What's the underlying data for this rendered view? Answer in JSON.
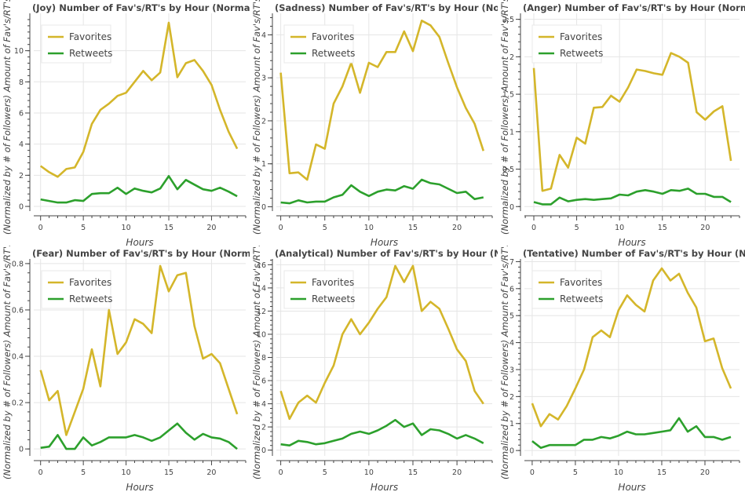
{
  "chart_data": [
    {
      "type": "line",
      "title": "(Joy) Number of Fav's/RT's by Hour (Normalized by # of Followers)",
      "xlabel": "Hours",
      "ylabel": "(Normalized by # of Followers) Amount of Fav's/RT's",
      "xlim": [
        -0.8,
        24
      ],
      "ylim": [
        -0.3,
        12.4
      ],
      "xticks": [
        0,
        5,
        10,
        15,
        20
      ],
      "yticks": [
        0,
        2,
        4,
        6,
        8,
        10
      ],
      "ytick_labels": [
        "0",
        "2",
        "4",
        "6",
        "8",
        "10"
      ],
      "grid": true,
      "legend": "top-left",
      "x": [
        0,
        1,
        2,
        3,
        4,
        5,
        6,
        7,
        8,
        9,
        10,
        11,
        12,
        13,
        14,
        15,
        16,
        17,
        18,
        19,
        20,
        21,
        22,
        23
      ],
      "series": [
        {
          "name": "Favorites",
          "color": "#d4b62a",
          "values": [
            2.6,
            2.2,
            1.9,
            2.4,
            2.5,
            3.5,
            5.3,
            6.2,
            6.6,
            7.1,
            7.3,
            8.0,
            8.7,
            8.1,
            8.6,
            11.8,
            8.3,
            9.2,
            9.4,
            8.7,
            7.8,
            6.2,
            4.8,
            3.7
          ]
        },
        {
          "name": "Retweets",
          "color": "#2ca02c",
          "values": [
            0.45,
            0.35,
            0.25,
            0.25,
            0.4,
            0.35,
            0.8,
            0.85,
            0.85,
            1.2,
            0.8,
            1.15,
            1.0,
            0.9,
            1.15,
            1.95,
            1.1,
            1.7,
            1.4,
            1.1,
            1.0,
            1.2,
            0.95,
            0.65
          ]
        }
      ]
    },
    {
      "type": "line",
      "title": "(Sadness) Number of Fav's/RT's by Hour (Normalized by # of Followers)",
      "xlabel": "Hours",
      "ylabel": "(Normalized by # of Followers) Amount of Fav's/RT's",
      "xlim": [
        -0.5,
        24
      ],
      "ylim": [
        -0.1,
        4.5
      ],
      "xticks": [
        0,
        5,
        10,
        15,
        20
      ],
      "yticks": [
        0,
        1,
        2,
        3,
        4
      ],
      "ytick_labels": [
        "0",
        "1",
        "2",
        "3",
        "4"
      ],
      "grid": true,
      "legend": "top-left",
      "x": [
        0,
        1,
        2,
        3,
        4,
        5,
        6,
        7,
        8,
        9,
        10,
        11,
        12,
        13,
        14,
        15,
        16,
        17,
        18,
        19,
        20,
        21,
        22,
        23
      ],
      "series": [
        {
          "name": "Favorites",
          "color": "#d4b62a",
          "values": [
            3.12,
            0.78,
            0.8,
            0.63,
            1.45,
            1.35,
            2.4,
            2.8,
            3.35,
            2.65,
            3.35,
            3.25,
            3.6,
            3.6,
            4.08,
            3.62,
            4.33,
            4.22,
            3.95,
            3.35,
            2.78,
            2.3,
            1.93,
            1.3
          ]
        },
        {
          "name": "Retweets",
          "color": "#2ca02c",
          "values": [
            0.1,
            0.08,
            0.15,
            0.1,
            0.12,
            0.12,
            0.22,
            0.28,
            0.5,
            0.35,
            0.25,
            0.35,
            0.4,
            0.38,
            0.48,
            0.42,
            0.63,
            0.55,
            0.52,
            0.42,
            0.32,
            0.35,
            0.18,
            0.22
          ]
        }
      ]
    },
    {
      "type": "line",
      "title": "(Anger) Number of Fav's/RT's by Hour (Normalized by # of Followers)",
      "xlabel": "Hours",
      "ylabel": "(Normalized by # of Followers) Amount of Fav's/RT's",
      "xlim": [
        -1.1,
        24
      ],
      "ylim": [
        -0.06,
        2.58
      ],
      "xticks": [
        0,
        5,
        10,
        15,
        20
      ],
      "yticks": [
        0,
        0.5,
        1,
        1.5,
        2,
        2.5
      ],
      "ytick_labels": [
        "0",
        "0.5",
        "1",
        "1.5",
        "2",
        "2.5"
      ],
      "grid": true,
      "legend": "top-left",
      "x": [
        0,
        1,
        2,
        3,
        4,
        5,
        6,
        7,
        8,
        9,
        10,
        11,
        12,
        13,
        14,
        15,
        16,
        17,
        18,
        19,
        20,
        21,
        22,
        23
      ],
      "series": [
        {
          "name": "Favorites",
          "color": "#d4b62a",
          "values": [
            1.85,
            0.21,
            0.24,
            0.69,
            0.52,
            0.92,
            0.84,
            1.32,
            1.33,
            1.48,
            1.4,
            1.59,
            1.83,
            1.81,
            1.78,
            1.76,
            2.05,
            2.0,
            1.92,
            1.26,
            1.16,
            1.27,
            1.34,
            0.61
          ]
        },
        {
          "name": "Retweets",
          "color": "#2ca02c",
          "values": [
            0.06,
            0.03,
            0.03,
            0.12,
            0.07,
            0.09,
            0.1,
            0.09,
            0.1,
            0.11,
            0.16,
            0.15,
            0.2,
            0.22,
            0.2,
            0.17,
            0.22,
            0.21,
            0.24,
            0.17,
            0.17,
            0.13,
            0.13,
            0.06
          ]
        }
      ]
    },
    {
      "type": "line",
      "title": "(Fear) Number of Fav's/RT's by Hour (Normalized by # of Followers)",
      "xlabel": "Hours",
      "ylabel": "(Normalized by # of Followers) Amount of Fav's/RT's",
      "xlim": [
        -0.8,
        24
      ],
      "ylim": [
        -0.03,
        0.82
      ],
      "xticks": [
        0,
        5,
        10,
        15,
        20
      ],
      "yticks": [
        0,
        0.2,
        0.4,
        0.6,
        0.8
      ],
      "ytick_labels": [
        "0",
        "0.2",
        "0.4",
        "0.6",
        "0.8"
      ],
      "grid": true,
      "legend": "top-left",
      "x": [
        0,
        1,
        2,
        3,
        4,
        5,
        6,
        7,
        8,
        9,
        10,
        11,
        12,
        13,
        14,
        15,
        16,
        17,
        18,
        19,
        20,
        21,
        22,
        23
      ],
      "series": [
        {
          "name": "Favorites",
          "color": "#d4b62a",
          "values": [
            0.34,
            0.21,
            0.25,
            0.06,
            0.16,
            0.26,
            0.43,
            0.27,
            0.6,
            0.41,
            0.46,
            0.56,
            0.54,
            0.5,
            0.79,
            0.68,
            0.75,
            0.76,
            0.53,
            0.39,
            0.41,
            0.37,
            0.26,
            0.15
          ]
        },
        {
          "name": "Retweets",
          "color": "#2ca02c",
          "values": [
            0.005,
            0.01,
            0.06,
            0.0,
            0.0,
            0.05,
            0.015,
            0.03,
            0.05,
            0.05,
            0.05,
            0.06,
            0.05,
            0.035,
            0.05,
            0.08,
            0.11,
            0.07,
            0.04,
            0.065,
            0.05,
            0.045,
            0.03,
            0.0
          ]
        }
      ]
    },
    {
      "type": "line",
      "title": "(Analytical) Number of Fav's/RT's by Hour (Normalized by # of Followers)",
      "xlabel": "Hours",
      "ylabel": "(Normalized by # of Followers) Amount of Fav's/RT's",
      "xlim": [
        -0.5,
        24
      ],
      "ylim": [
        -0.5,
        16.5
      ],
      "xticks": [
        0,
        5,
        10,
        15,
        20
      ],
      "yticks": [
        0,
        2,
        4,
        6,
        8,
        10,
        12,
        14,
        16
      ],
      "ytick_labels": [
        "0",
        "2",
        "4",
        "6",
        "8",
        "10",
        "12",
        "14",
        "16"
      ],
      "grid": true,
      "legend": "top-left",
      "x": [
        0,
        1,
        2,
        3,
        4,
        5,
        6,
        7,
        8,
        9,
        10,
        11,
        12,
        13,
        14,
        15,
        16,
        17,
        18,
        19,
        20,
        21,
        22,
        23
      ],
      "series": [
        {
          "name": "Favorites",
          "color": "#d4b62a",
          "values": [
            5.1,
            2.7,
            4.1,
            4.7,
            4.1,
            5.8,
            7.3,
            10.0,
            11.3,
            10.0,
            11.0,
            12.2,
            13.2,
            15.9,
            14.5,
            15.9,
            12.0,
            12.8,
            12.2,
            10.5,
            8.7,
            7.7,
            5.1,
            4.0
          ]
        },
        {
          "name": "Retweets",
          "color": "#2ca02c",
          "values": [
            0.5,
            0.4,
            0.8,
            0.7,
            0.5,
            0.6,
            0.8,
            1.0,
            1.4,
            1.6,
            1.4,
            1.7,
            2.1,
            2.6,
            2.0,
            2.3,
            1.3,
            1.8,
            1.7,
            1.4,
            1.0,
            1.3,
            1.0,
            0.6
          ]
        }
      ]
    },
    {
      "type": "line",
      "title": "(Tentative) Number of Fav's/RT's by Hour (Normalized by # of Followers)",
      "xlabel": "Hours",
      "ylabel": "(Normalized by # of Followers) Amount of Fav's/RT's",
      "xlim": [
        -0.9,
        24
      ],
      "ylim": [
        -0.2,
        7.1
      ],
      "xticks": [
        0,
        5,
        10,
        15,
        20
      ],
      "yticks": [
        0,
        1,
        2,
        3,
        4,
        5,
        6,
        7
      ],
      "ytick_labels": [
        "0",
        "1",
        "2",
        "3",
        "4",
        "5",
        "6",
        "7"
      ],
      "grid": true,
      "legend": "top-left",
      "x": [
        0,
        1,
        2,
        3,
        4,
        5,
        6,
        7,
        8,
        9,
        10,
        11,
        12,
        13,
        14,
        15,
        16,
        17,
        18,
        19,
        20,
        21,
        22,
        23
      ],
      "series": [
        {
          "name": "Favorites",
          "color": "#d4b62a",
          "values": [
            1.75,
            0.9,
            1.35,
            1.15,
            1.65,
            2.3,
            3.0,
            4.2,
            4.45,
            4.2,
            5.2,
            5.75,
            5.4,
            5.15,
            6.3,
            6.75,
            6.3,
            6.55,
            5.85,
            5.3,
            4.05,
            4.15,
            3.05,
            2.3
          ]
        },
        {
          "name": "Retweets",
          "color": "#2ca02c",
          "values": [
            0.35,
            0.1,
            0.2,
            0.2,
            0.2,
            0.2,
            0.4,
            0.4,
            0.5,
            0.45,
            0.55,
            0.7,
            0.6,
            0.6,
            0.65,
            0.7,
            0.75,
            1.2,
            0.7,
            0.9,
            0.5,
            0.5,
            0.4,
            0.5
          ]
        }
      ]
    }
  ]
}
